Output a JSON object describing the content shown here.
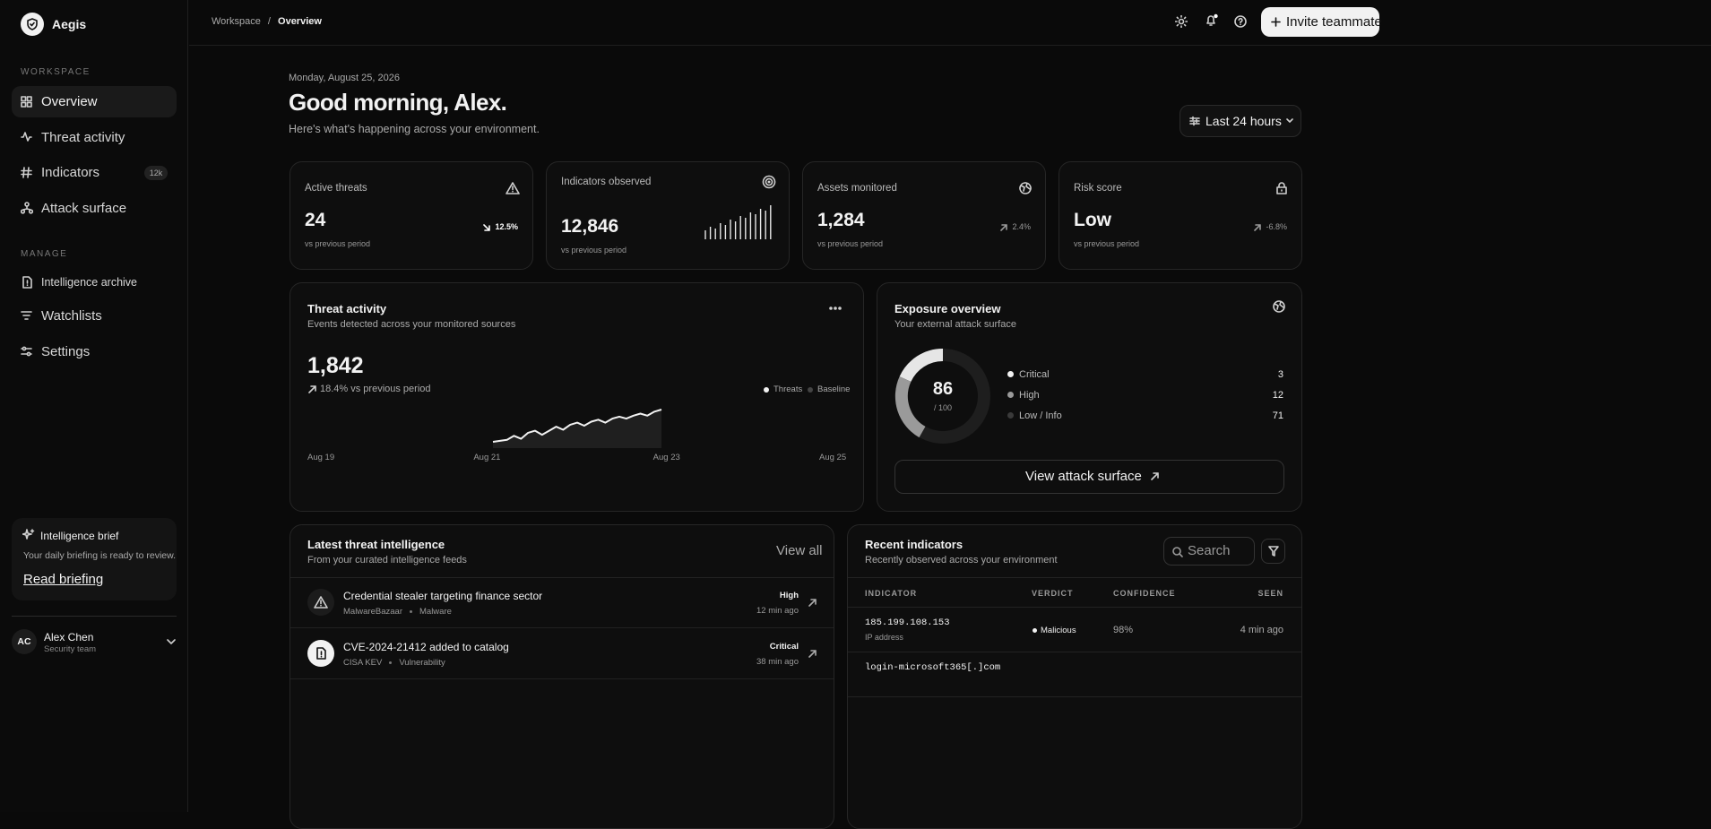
{
  "sidebar": {
    "brand": "Aegis",
    "workspace_label": "WORKSPACE",
    "workspace_nav": [
      "Overview",
      "Threat activity",
      "Indicators",
      "Attack surface"
    ],
    "indicators_badge": "12k",
    "manage_label": "MANAGE",
    "manage_nav": [
      "Intelligence archive",
      "Watchlists",
      "Settings"
    ],
    "brief": {
      "title": "Intelligence brief",
      "text": "Your daily briefing is ready to review.",
      "link": "Read briefing"
    },
    "user": {
      "initials": "AC",
      "name": "Alex Chen",
      "role": "Security team"
    }
  },
  "topbar": {
    "breadcrumb": [
      "Workspace",
      "Overview"
    ],
    "separator": "/",
    "invite": "Invite teammate"
  },
  "header": {
    "date": "Monday, August 25, 2026",
    "greeting": "Good morning, Alex.",
    "subtitle": "Here's what's happening across your environment.",
    "range": "Last 24 hours"
  },
  "stats": [
    {
      "label": "Active threats",
      "value": "24",
      "change": "12.5%",
      "note": "vs previous period"
    },
    {
      "label": "Indicators observed",
      "value": "12,846",
      "note": "vs previous period",
      "spark": [
        10,
        14,
        12,
        18,
        16,
        22,
        20,
        26,
        24,
        30,
        28,
        34,
        32,
        38
      ]
    },
    {
      "label": "Assets monitored",
      "value": "1,284",
      "change": "2.4%",
      "note": "vs previous period"
    },
    {
      "label": "Risk score",
      "value": "Low",
      "change": "-6.8%",
      "note": "vs previous period"
    }
  ],
  "threat_activity": {
    "title": "Threat activity",
    "subtitle": "Events detected across your monitored sources",
    "value": "1,842",
    "change": "18.4% vs previous period",
    "legend": [
      "Threats",
      "Baseline"
    ],
    "x_labels": [
      "Aug 19",
      "Aug 21",
      "Aug 23",
      "Aug 25"
    ],
    "values": [
      10,
      11,
      12,
      16,
      13,
      19,
      21,
      17,
      21,
      25,
      22,
      27,
      29,
      26,
      30,
      32,
      29,
      33,
      35,
      33,
      36,
      38,
      36,
      40,
      42
    ]
  },
  "exposure": {
    "title": "Exposure overview",
    "subtitle": "Your external attack surface",
    "score": "86",
    "score_max": "/ 100",
    "legend": [
      {
        "label": "Critical",
        "count": 3
      },
      {
        "label": "High",
        "count": 12
      },
      {
        "label": "Low / Info",
        "count": 71
      }
    ],
    "button": "View attack surface"
  },
  "intel": {
    "title": "Latest threat intelligence",
    "subtitle": "From your curated intelligence feeds",
    "view_all": "View all",
    "items": [
      {
        "title": "Credential stealer targeting finance sector",
        "source": "MalwareBazaar",
        "category": "Malware",
        "severity": "High",
        "time": "12 min ago"
      },
      {
        "title": "CVE-2024-21412 added to catalog",
        "source": "CISA KEV",
        "category": "Vulnerability",
        "severity": "Critical",
        "time": "38 min ago"
      }
    ]
  },
  "indicators": {
    "title": "Recent indicators",
    "subtitle": "Recently observed across your environment",
    "search": "Search",
    "columns": [
      "INDICATOR",
      "VERDICT",
      "CONFIDENCE",
      "SEEN"
    ],
    "rows": [
      {
        "indicator": "185.199.108.153",
        "type": "IP address",
        "verdict": "Malicious",
        "confidence": "98%",
        "seen": "4 min ago"
      },
      {
        "indicator": "login-microsoft365[.]com"
      }
    ]
  }
}
